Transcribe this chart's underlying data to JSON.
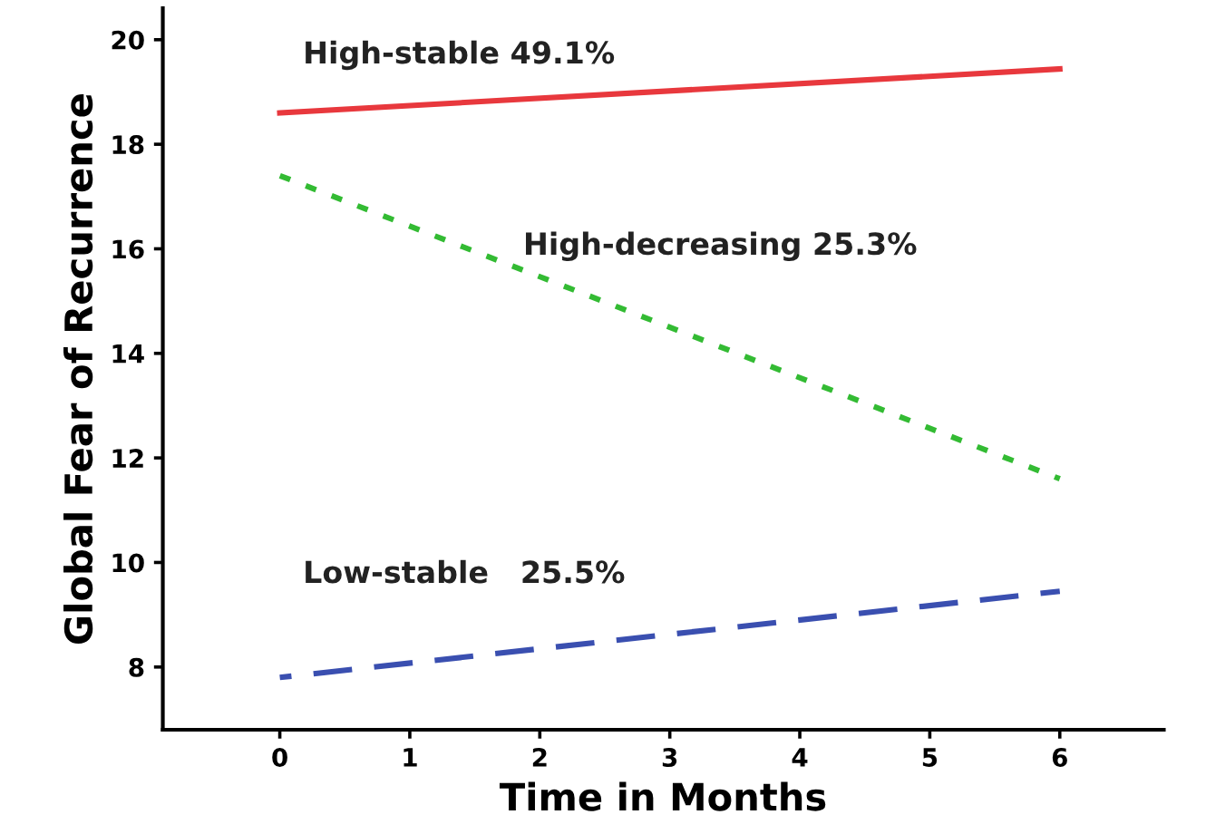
{
  "chart_data": {
    "type": "line",
    "xlabel": "Time in Months",
    "ylabel": "Global Fear of Recurrence",
    "x": [
      0,
      6
    ],
    "series": [
      {
        "name": "High-stable 49.1%",
        "color": "#e8383d",
        "values": [
          18.6,
          19.44
        ],
        "line_style": "solid"
      },
      {
        "name": "High-decreasing 25.3%",
        "color": "#33bb33",
        "values": [
          17.4,
          11.6
        ],
        "line_style": "dotted"
      },
      {
        "name": "Low-stable   25.5%",
        "color": "#3a4fb0",
        "values": [
          7.8,
          9.45
        ],
        "line_style": "dashed"
      }
    ],
    "xlim": [
      -0.9,
      6.8
    ],
    "ylim": [
      6.8,
      20.6
    ],
    "xticks": [
      0,
      1,
      2,
      3,
      4,
      5,
      6
    ],
    "yticks": [
      8,
      10,
      12,
      14,
      16,
      18,
      20
    ],
    "grid": false,
    "legend": false,
    "marker": "none"
  }
}
